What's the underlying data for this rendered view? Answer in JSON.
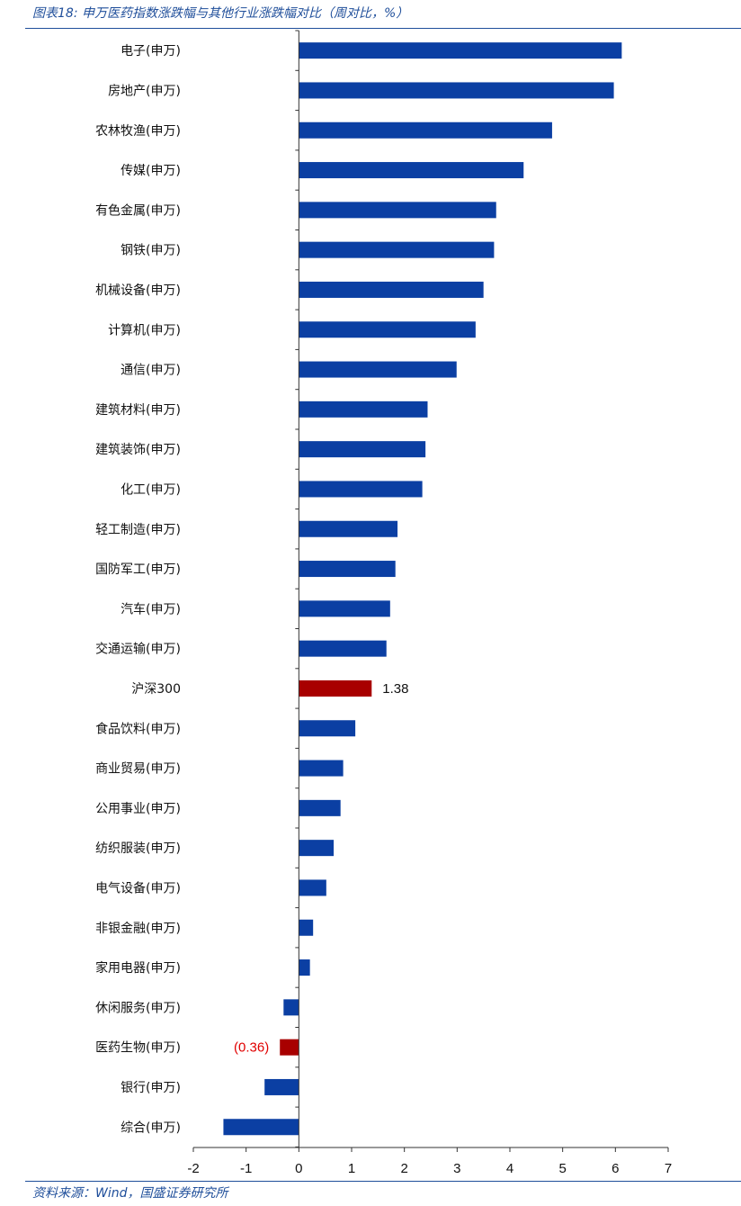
{
  "header": {
    "title": "图表18:  申万医药指数涨跌幅与其他行业涨跌幅对比（周对比，%）"
  },
  "footer": {
    "source": "资料来源：Wind，国盛证券研究所"
  },
  "colors": {
    "bar": "#0b3fa3",
    "highlight": "#a80000",
    "negative_label": "#e00000",
    "axis": "#333333",
    "rule": "#1f4e9a"
  },
  "chart_data": {
    "type": "bar",
    "orientation": "horizontal",
    "xlim": [
      -2,
      7
    ],
    "xticks": [
      "-2",
      "-1",
      "0",
      "1",
      "2",
      "3",
      "4",
      "5",
      "6",
      "7"
    ],
    "grid": false,
    "categories": [
      "电子(申万)",
      "房地产(申万)",
      "农林牧渔(申万)",
      "传媒(申万)",
      "有色金属(申万)",
      "钢铁(申万)",
      "机械设备(申万)",
      "计算机(申万)",
      "通信(申万)",
      "建筑材料(申万)",
      "建筑装饰(申万)",
      "化工(申万)",
      "轻工制造(申万)",
      "国防军工(申万)",
      "汽车(申万)",
      "交通运输(申万)",
      "沪深300",
      "食品饮料(申万)",
      "商业贸易(申万)",
      "公用事业(申万)",
      "纺织服装(申万)",
      "电气设备(申万)",
      "非银金融(申万)",
      "家用电器(申万)",
      "休闲服务(申万)",
      "医药生物(申万)",
      "银行(申万)",
      "综合(申万)"
    ],
    "values": [
      6.12,
      5.97,
      4.8,
      4.26,
      3.74,
      3.7,
      3.5,
      3.35,
      2.99,
      2.44,
      2.4,
      2.34,
      1.87,
      1.83,
      1.73,
      1.66,
      1.38,
      1.07,
      0.84,
      0.79,
      0.66,
      0.52,
      0.27,
      0.21,
      -0.29,
      -0.36,
      -0.65,
      -1.43
    ],
    "highlighted": [
      "沪深300",
      "医药生物(申万)"
    ],
    "data_labels": [
      {
        "category": "沪深300",
        "text": "1.38"
      },
      {
        "category": "医药生物(申万)",
        "text": "(0.36)"
      }
    ]
  }
}
